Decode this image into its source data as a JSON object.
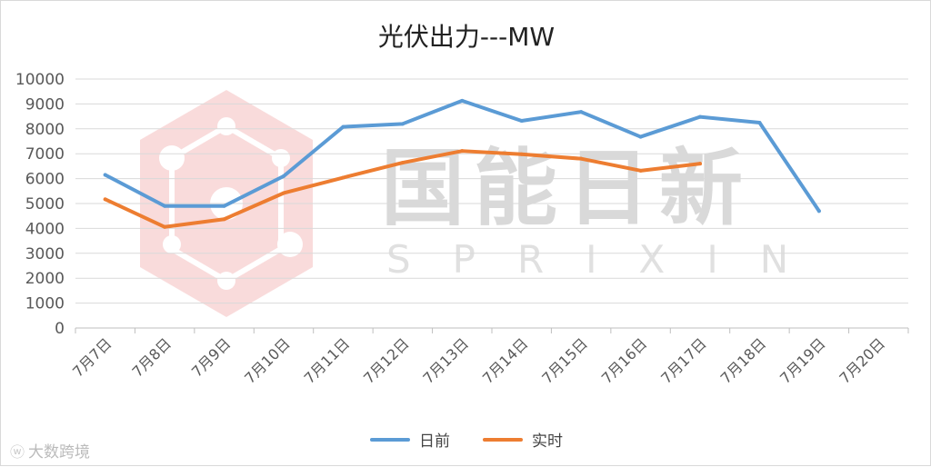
{
  "watermark": {
    "main": "国能日新",
    "sub": "SPRIXIN",
    "corner": "大数跨境",
    "corner_icon": "weibo-icon"
  },
  "colors": {
    "series1": "#5b9bd5",
    "series2": "#ed7d31",
    "grid": "#d9d9d9",
    "axis": "#bfbfbf",
    "text": "#595959"
  },
  "chart_data": {
    "type": "line",
    "title": "光伏出力---MW",
    "xlabel": "",
    "ylabel": "",
    "ylim": [
      0,
      10000
    ],
    "yticks": [
      "0",
      "1000",
      "2000",
      "3000",
      "4000",
      "5000",
      "6000",
      "7000",
      "8000",
      "9000",
      "10000"
    ],
    "ytick_values": [
      0,
      1000,
      2000,
      3000,
      4000,
      5000,
      6000,
      7000,
      8000,
      9000,
      10000
    ],
    "categories": [
      "7月7日",
      "7月8日",
      "7月9日",
      "7月10日",
      "7月11日",
      "7月12日",
      "7月13日",
      "7月14日",
      "7月15日",
      "7月16日",
      "7月17日",
      "7月18日",
      "7月19日",
      "7月20日"
    ],
    "series": [
      {
        "name": "日前",
        "values": [
          6150,
          4900,
          4900,
          6100,
          8080,
          8200,
          9130,
          8320,
          8680,
          7680,
          8480,
          8250,
          4700,
          null
        ]
      },
      {
        "name": "实时",
        "values": [
          5170,
          4060,
          4370,
          5420,
          6040,
          6640,
          7110,
          6980,
          6800,
          6320,
          6600,
          null,
          null,
          null
        ]
      }
    ],
    "legend_position": "bottom",
    "grid": true
  }
}
